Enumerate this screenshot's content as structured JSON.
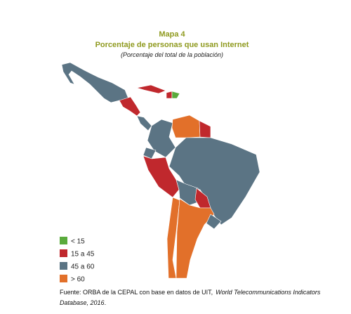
{
  "header": {
    "kicker": "Mapa 4",
    "title": "Porcentaje de personas que usan Internet",
    "subtitle": "(Porcentaje del total de la población)"
  },
  "legend": [
    {
      "label": "< 15",
      "color": "#5aab3c"
    },
    {
      "label": "15 a 45",
      "color": "#c0282d"
    },
    {
      "label": "45 a 60",
      "color": "#5b7484"
    },
    {
      "label": "> 60",
      "color": "#e2702a"
    }
  ],
  "source": {
    "line1": [
      "Fuente: ORBA de la CEPAL con base en datos de UIT,",
      "World Telecommunications Indicators"
    ],
    "line2": [
      "Database, 2016",
      "."
    ]
  }
}
